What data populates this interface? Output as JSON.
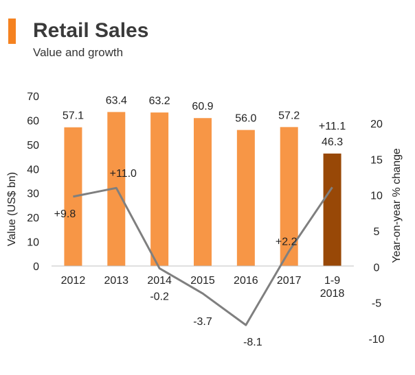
{
  "header": {
    "title": "Retail Sales",
    "subtitle": "Value and growth"
  },
  "chart_data": {
    "type": "bar+line",
    "categories": [
      "2012",
      "2013",
      "2014",
      "2015",
      "2016",
      "2017",
      "1-9\n2018"
    ],
    "bar_series": {
      "values": [
        57.1,
        63.4,
        63.2,
        60.9,
        56.0,
        57.2,
        46.3
      ],
      "labels": [
        "57.1",
        "63.4",
        "63.2",
        "60.9",
        "56.0",
        "57.2",
        "46.3"
      ]
    },
    "line_series": {
      "values": [
        9.8,
        11.0,
        -0.2,
        -3.7,
        -8.1,
        2.2,
        11.1
      ],
      "labels": [
        "+9.8",
        "+11.0",
        "-0.2",
        "-3.7",
        "-8.1",
        "+2.2",
        "+11.1"
      ]
    },
    "ylabel": "Value (US$ bn)",
    "y2label": "Year-on-year % change",
    "ylim": [
      0,
      70
    ],
    "yticks": [
      0,
      10,
      20,
      30,
      40,
      50,
      60,
      70
    ],
    "y2lim": [
      -10,
      20
    ],
    "y2ticks": [
      -10,
      -5,
      0,
      5,
      10,
      15,
      20
    ],
    "grid": false,
    "colors": {
      "bar": "#f79646",
      "bar_highlight": "#984807",
      "line": "#7f7f7f",
      "accent": "#f58220"
    }
  }
}
